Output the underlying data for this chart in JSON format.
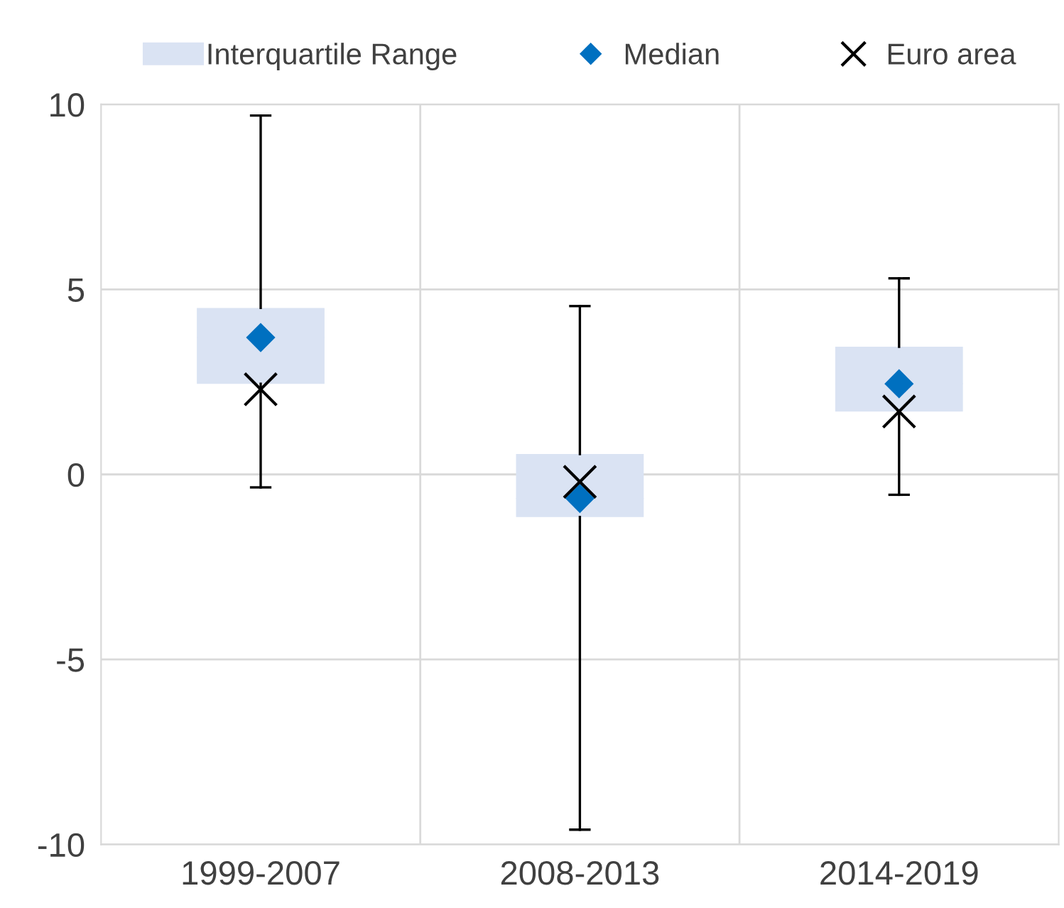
{
  "chart_data": {
    "type": "box",
    "categories": [
      "1999-2007",
      "2008-2013",
      "2014-2019"
    ],
    "series": [
      {
        "name": "Interquartile Range",
        "color": "#dae3f3",
        "boxes": [
          {
            "low": -0.35,
            "q1": 2.45,
            "median": 3.7,
            "q3": 4.5,
            "high": 9.7
          },
          {
            "low": -9.6,
            "q1": -1.15,
            "median": -0.65,
            "q3": 0.55,
            "high": 4.55
          },
          {
            "low": -0.55,
            "q1": 1.7,
            "median": 2.45,
            "q3": 3.45,
            "high": 5.3
          }
        ]
      },
      {
        "type": "scatter",
        "name": "Median",
        "color": "#0070c0",
        "marker": "diamond",
        "values": [
          3.7,
          -0.65,
          2.45
        ]
      },
      {
        "type": "scatter",
        "name": "Euro area",
        "color": "#000000",
        "marker": "cross",
        "values": [
          2.3,
          -0.2,
          1.7
        ]
      }
    ],
    "ylim": [
      -10,
      10
    ],
    "yticks": [
      -10,
      -5,
      0,
      5,
      10
    ],
    "grid": true,
    "legend": "top"
  }
}
